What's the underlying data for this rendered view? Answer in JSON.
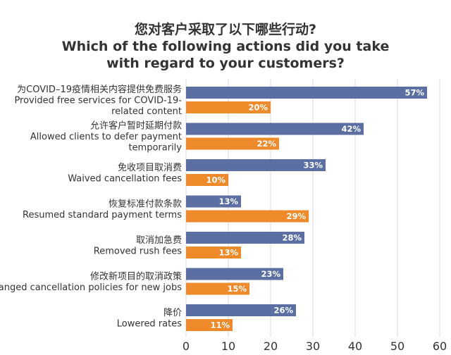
{
  "chart_data": {
    "type": "bar",
    "orientation": "horizontal",
    "title": [
      "您对客户采取了以下哪些行动?",
      "Which of the following actions did you take",
      "with regard to your customers?"
    ],
    "categories": [
      [
        "为COVID–19疫情相关内容提供免费服务",
        "Provided free services for COVID-19-",
        "related content"
      ],
      [
        "允许客户暂时延期付款",
        "Allowed clients to defer payment",
        "temporarily"
      ],
      [
        "免收项目取消费",
        "Waived cancellation fees"
      ],
      [
        "恢复标准付款条款",
        "Resumed standard payment terms"
      ],
      [
        "取消加急费",
        "Removed rush fees"
      ],
      [
        "修改新项目的取消政策",
        "Changed cancellation policies for new jobs"
      ],
      [
        "降价",
        "Lowered rates"
      ]
    ],
    "series": [
      {
        "color": "#5b6fa3",
        "values": [
          57,
          42,
          33,
          13,
          28,
          23,
          26
        ]
      },
      {
        "color": "#ee8a2a",
        "values": [
          20,
          22,
          10,
          29,
          13,
          15,
          11
        ]
      }
    ],
    "value_suffix": "%",
    "xlim": [
      0,
      60
    ],
    "xticks": [
      0,
      10,
      20,
      30,
      40,
      50,
      60
    ],
    "grid": true,
    "legend": "none"
  }
}
